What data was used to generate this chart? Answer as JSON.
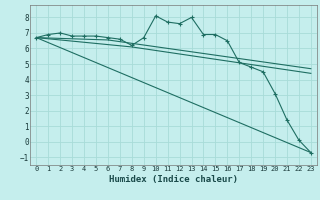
{
  "xlabel": "Humidex (Indice chaleur)",
  "background_color": "#c5eeed",
  "grid_color": "#a8dcd8",
  "line_color": "#1e6e62",
  "xlim": [
    -0.5,
    23.5
  ],
  "ylim": [
    -1.5,
    8.8
  ],
  "yticks": [
    -1,
    0,
    1,
    2,
    3,
    4,
    5,
    6,
    7,
    8
  ],
  "xticks": [
    0,
    1,
    2,
    3,
    4,
    5,
    6,
    7,
    8,
    9,
    10,
    11,
    12,
    13,
    14,
    15,
    16,
    17,
    18,
    19,
    20,
    21,
    22,
    23
  ],
  "series1_x": [
    0,
    1,
    2,
    3,
    4,
    5,
    6,
    7,
    8,
    9,
    10,
    11,
    12,
    13,
    14,
    15,
    16,
    17,
    18,
    19,
    20,
    21,
    22,
    23
  ],
  "series1_y": [
    6.7,
    6.9,
    7.0,
    6.8,
    6.8,
    6.8,
    6.7,
    6.6,
    6.2,
    6.7,
    8.1,
    7.7,
    7.6,
    8.0,
    6.9,
    6.9,
    6.5,
    5.1,
    4.8,
    4.5,
    3.1,
    1.4,
    0.1,
    -0.7
  ],
  "series2_x": [
    0,
    23
  ],
  "series2_y": [
    6.7,
    -0.7
  ],
  "series3_x": [
    0,
    6,
    23
  ],
  "series3_y": [
    6.7,
    6.55,
    4.7
  ],
  "series4_x": [
    0,
    8,
    23
  ],
  "series4_y": [
    6.7,
    6.1,
    4.4
  ]
}
